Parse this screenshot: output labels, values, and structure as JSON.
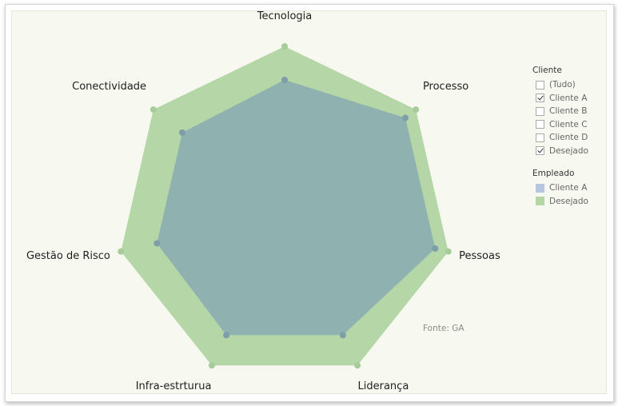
{
  "chart_data": {
    "type": "radar",
    "categories": [
      "Tecnologia",
      "Processo",
      "Pessoas",
      "Liderança",
      "Infra-estrturua",
      "Gestão de Risco",
      "Conectividade"
    ],
    "series": [
      {
        "name": "Desejado",
        "color": "#b5d6a7",
        "values": [
          5,
          5,
          5,
          5,
          5,
          5,
          5
        ]
      },
      {
        "name": "Cliente A",
        "color": "#8fb2b0",
        "values": [
          4,
          4.6,
          4.6,
          4.0,
          4.0,
          3.9,
          3.9
        ]
      }
    ],
    "rmax": 5,
    "source": "Fonte: GA"
  },
  "filter": {
    "title": "Cliente",
    "items": [
      {
        "label": "(Tudo)",
        "checked": false
      },
      {
        "label": "Cliente A",
        "checked": true
      },
      {
        "label": "Cliente B",
        "checked": false
      },
      {
        "label": "Cliente C",
        "checked": false
      },
      {
        "label": "Cliente D",
        "checked": false
      },
      {
        "label": "Desejado",
        "checked": true
      }
    ]
  },
  "color_legend": {
    "title": "Empleado",
    "items": [
      {
        "label": "Cliente A",
        "color": "#b5c6de"
      },
      {
        "label": "Desejado",
        "color": "#b5d6a7"
      }
    ]
  }
}
